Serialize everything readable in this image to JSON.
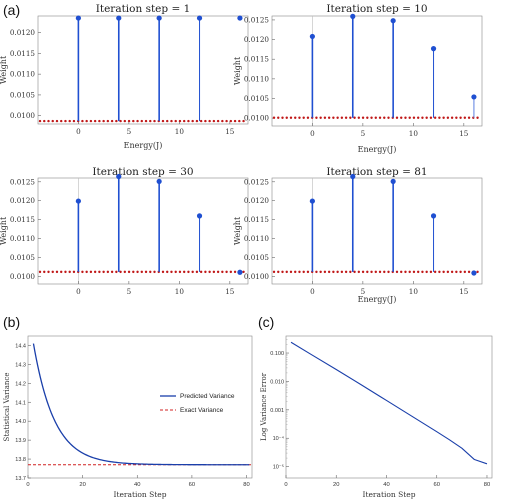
{
  "figure": {
    "panel_labels": [
      "(a)",
      "(b)",
      "(c)"
    ]
  },
  "colors": {
    "stem": "#1f4fd1",
    "stem_light": "#5b7fe0",
    "dots": "#c01818",
    "curve": "#1a3faa",
    "exact": "#d02020",
    "axis": "#666666"
  },
  "chart_data": [
    {
      "id": "a1",
      "type": "scatter",
      "title": "Iteration step = 1",
      "xlabel": "Energy(J)",
      "ylabel": "Weight",
      "xlim": [
        -4,
        16.8
      ],
      "ylim": [
        0.0098,
        0.0124
      ],
      "xticks": [
        "0",
        "5",
        "10",
        "15"
      ],
      "xtick_values": [
        0,
        5,
        10,
        15
      ],
      "yticks": [
        "0.0100",
        "0.0105",
        "0.0110",
        "0.0115",
        "0.0120"
      ],
      "ytick_values": [
        0.01,
        0.0105,
        0.011,
        0.0115,
        0.012
      ],
      "baseline": 0.00987,
      "stems": [
        {
          "x": 0,
          "y": 0.01235
        },
        {
          "x": 4,
          "y": 0.01235
        },
        {
          "x": 8,
          "y": 0.01235
        },
        {
          "x": 12,
          "y": 0.01235
        },
        {
          "x": 16,
          "y": 0.01235
        }
      ]
    },
    {
      "id": "a2",
      "type": "scatter",
      "title": "Iteration step = 10",
      "xlabel": "Energy(J)",
      "ylabel": "Weight",
      "xlim": [
        -4,
        16.8
      ],
      "ylim": [
        0.0098,
        0.0126
      ],
      "xticks": [
        "0",
        "5",
        "10",
        "15"
      ],
      "xtick_values": [
        0,
        5,
        10,
        15
      ],
      "yticks": [
        "0.0100",
        "0.0105",
        "0.0110",
        "0.0115",
        "0.0120",
        "0.0125"
      ],
      "ytick_values": [
        0.01,
        0.0105,
        0.011,
        0.0115,
        0.012,
        0.0125
      ],
      "baseline": 0.01001,
      "stems": [
        {
          "x": 0,
          "y": 0.01208
        },
        {
          "x": 4,
          "y": 0.01259
        },
        {
          "x": 8,
          "y": 0.01248
        },
        {
          "x": 12,
          "y": 0.01177
        },
        {
          "x": 16,
          "y": 0.01054
        }
      ]
    },
    {
      "id": "a3",
      "type": "scatter",
      "title": "Iteration step = 30",
      "xlabel": "",
      "ylabel": "Weight",
      "xlim": [
        -4,
        16.8
      ],
      "ylim": [
        0.0098,
        0.0126
      ],
      "xticks": [
        "0",
        "5",
        "10",
        "15"
      ],
      "xtick_values": [
        0,
        5,
        10,
        15
      ],
      "yticks": [
        "0.0100",
        "0.0105",
        "0.0110",
        "0.0115",
        "0.0120",
        "0.0125"
      ],
      "ytick_values": [
        0.01,
        0.0105,
        0.011,
        0.0115,
        0.012,
        0.0125
      ],
      "baseline": 0.01012,
      "stems": [
        {
          "x": 0,
          "y": 0.01199
        },
        {
          "x": 4,
          "y": 0.01264
        },
        {
          "x": 8,
          "y": 0.01251
        },
        {
          "x": 12,
          "y": 0.0116
        },
        {
          "x": 16,
          "y": 0.01011
        }
      ]
    },
    {
      "id": "a4",
      "type": "scatter",
      "title": "Iteration step = 81",
      "xlabel": "Energy(J)",
      "ylabel": "Weight",
      "xlim": [
        -4,
        16.8
      ],
      "ylim": [
        0.0098,
        0.0126
      ],
      "xticks": [
        "0",
        "5",
        "10",
        "15"
      ],
      "xtick_values": [
        0,
        5,
        10,
        15
      ],
      "yticks": [
        "0.0100",
        "0.0105",
        "0.0110",
        "0.0115",
        "0.0120",
        "0.0125"
      ],
      "ytick_values": [
        0.01,
        0.0105,
        0.011,
        0.0115,
        0.012,
        0.0125
      ],
      "baseline": 0.01012,
      "stems": [
        {
          "x": 0,
          "y": 0.01199
        },
        {
          "x": 4,
          "y": 0.01264
        },
        {
          "x": 8,
          "y": 0.01251
        },
        {
          "x": 12,
          "y": 0.0116
        },
        {
          "x": 16,
          "y": 0.01009
        }
      ]
    },
    {
      "id": "b",
      "type": "line",
      "title": "",
      "xlabel": "Iteration Step",
      "ylabel": "Statistical Variance",
      "xlim": [
        0,
        82
      ],
      "ylim": [
        13.7,
        14.45
      ],
      "xticks": [
        "0",
        "20",
        "40",
        "60",
        "80"
      ],
      "xtick_values": [
        0,
        20,
        40,
        60,
        80
      ],
      "yticks": [
        "13.7",
        "13.8",
        "13.9",
        "14.0",
        "14.1",
        "14.2",
        "14.3",
        "14.4"
      ],
      "ytick_values": [
        13.7,
        13.8,
        13.9,
        14.0,
        14.1,
        14.2,
        14.3,
        14.4
      ],
      "exact_value": 13.77,
      "predicted": {
        "start_x": 2,
        "start_y": 14.41,
        "end_x": 81,
        "asymptote": 13.77,
        "decay_rate": 0.13
      },
      "legend": [
        {
          "label": "Predicted Variance",
          "style": "solid"
        },
        {
          "label": "Exact Variance",
          "style": "dashed"
        }
      ],
      "legend_position": "right"
    },
    {
      "id": "c",
      "type": "line",
      "title": "",
      "xlabel": "Iteration Step",
      "ylabel": "Log Variance Error",
      "xlim": [
        0,
        82
      ],
      "ylim_log10": [
        -5.4,
        -0.4
      ],
      "xticks": [
        "0",
        "20",
        "40",
        "60",
        "80"
      ],
      "xtick_values": [
        0,
        20,
        40,
        60,
        80
      ],
      "yticks": [
        "0.100",
        "0.010",
        "0.001",
        "10⁻⁴",
        "10⁻⁵"
      ],
      "ytick_log10": [
        -1,
        -2,
        -3,
        -4,
        -5
      ],
      "series": [
        {
          "x": [
            2,
            10,
            20,
            30,
            40,
            50,
            60,
            65,
            70,
            75,
            80
          ],
          "log10_y": [
            -0.62,
            -1.05,
            -1.58,
            -2.12,
            -2.67,
            -3.22,
            -3.77,
            -4.05,
            -4.35,
            -4.75,
            -4.9
          ]
        }
      ]
    }
  ]
}
